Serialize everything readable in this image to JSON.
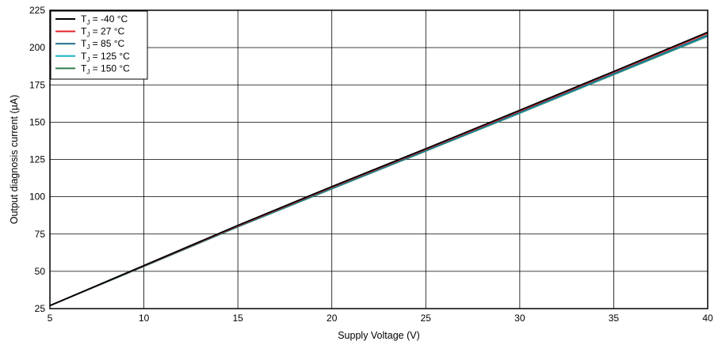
{
  "chart_data": {
    "type": "line",
    "title": "",
    "xlabel": "Supply Voltage (V)",
    "ylabel": "Output diagnosis current (µA)",
    "xlim": [
      5,
      40
    ],
    "ylim": [
      25,
      225
    ],
    "xticks": [
      5,
      10,
      15,
      20,
      25,
      30,
      35,
      40
    ],
    "yticks": [
      25,
      50,
      75,
      100,
      125,
      150,
      175,
      200,
      225
    ],
    "grid": true,
    "legend_position": "top-left",
    "x": [
      5,
      10,
      15,
      20,
      25,
      30,
      35,
      40
    ],
    "series": [
      {
        "name": "T_J = -40 °C",
        "label_main": "T",
        "label_sub": "J",
        "label_rest": " = -40 °C",
        "color": "#000000",
        "values": [
          27,
          53.9,
          80.8,
          106.8,
          132.2,
          158.0,
          184.0,
          210.3
        ]
      },
      {
        "name": "T_J = 27 °C",
        "label_main": "T",
        "label_sub": "J",
        "label_rest": " = 27 °C",
        "color": "#e8212a",
        "values": [
          27,
          53.7,
          80.5,
          106.4,
          131.8,
          157.5,
          183.5,
          209.6
        ]
      },
      {
        "name": "T_J = 85 °C",
        "label_main": "T",
        "label_sub": "J",
        "label_rest": " = 85 °C",
        "color": "#1c6e86",
        "values": [
          27,
          53.5,
          80.1,
          105.8,
          131.1,
          156.6,
          182.5,
          208.4
        ]
      },
      {
        "name": "T_J = 125 °C",
        "label_main": "T",
        "label_sub": "J",
        "label_rest": " = 125 °C",
        "color": "#19b4c8",
        "values": [
          27,
          53.4,
          80.0,
          105.6,
          130.9,
          156.3,
          182.2,
          208.0
        ]
      },
      {
        "name": "T_J = 150 °C",
        "label_main": "T",
        "label_sub": "J",
        "label_rest": " = 150 °C",
        "color": "#2e7d4f",
        "values": [
          27,
          53.3,
          79.8,
          105.3,
          130.6,
          156.0,
          181.9,
          207.6
        ]
      }
    ]
  }
}
